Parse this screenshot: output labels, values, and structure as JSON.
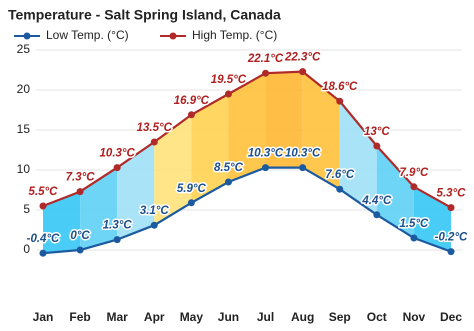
{
  "chart_data": {
    "type": "line",
    "title": "Temperature - Salt Spring Island, Canada",
    "categories": [
      "Jan",
      "Feb",
      "Mar",
      "Apr",
      "May",
      "Jun",
      "Jul",
      "Aug",
      "Sep",
      "Oct",
      "Nov",
      "Dec"
    ],
    "series": [
      {
        "name": "Low Temp. (°C)",
        "color": "#1c5aa0",
        "label_color": "#1c4f8c",
        "values": [
          -0.4,
          0,
          1.3,
          3.1,
          5.9,
          8.5,
          10.3,
          10.3,
          7.6,
          4.4,
          1.5,
          -0.2
        ],
        "value_labels": [
          "-0.4°C",
          "0°C",
          "1.3°C",
          "3.1°C",
          "5.9°C",
          "8.5°C",
          "10.3°C",
          "10.3°C",
          "7.6°C",
          "4.4°C",
          "1.5°C",
          "-0.2°C"
        ]
      },
      {
        "name": "High Temp. (°C)",
        "color": "#b02a2a",
        "label_color": "#b02020",
        "values": [
          5.5,
          7.3,
          10.3,
          13.5,
          16.9,
          19.5,
          22.1,
          22.3,
          18.6,
          13,
          7.9,
          5.3
        ],
        "value_labels": [
          "5.5°C",
          "7.3°C",
          "10.3°C",
          "13.5°C",
          "16.9°C",
          "19.5°C",
          "22.1°C",
          "22.3°C",
          "18.6°C",
          "13°C",
          "7.9°C",
          "5.3°C"
        ]
      }
    ],
    "ylim": [
      -2,
      25
    ],
    "yticks": [
      0,
      5,
      10,
      15,
      20,
      25
    ],
    "grid": true
  }
}
